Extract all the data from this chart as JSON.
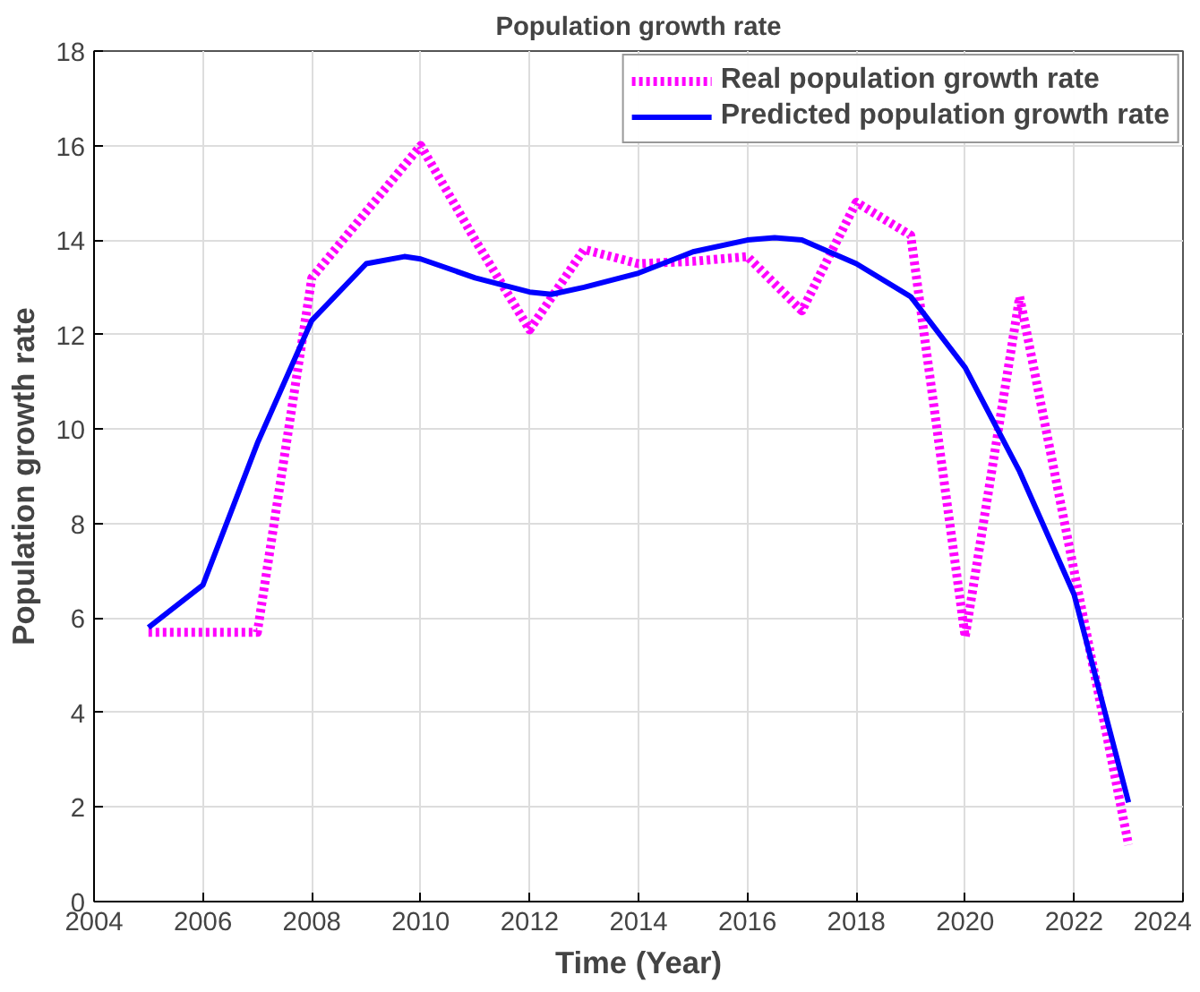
{
  "chart_data": {
    "type": "line",
    "title": "Population growth rate",
    "xlabel": "Time (Year)",
    "ylabel": "Population growth rate",
    "xlim": [
      2004,
      2024
    ],
    "xticks": [
      2004,
      2006,
      2008,
      2010,
      2012,
      2014,
      2016,
      2018,
      2020,
      2022,
      2024
    ],
    "ylim": [
      0,
      18
    ],
    "yticks": [
      0,
      2,
      4,
      6,
      8,
      10,
      12,
      14,
      16,
      18
    ],
    "grid": true,
    "legend": "top right",
    "series": [
      {
        "name": "Real population growth rate",
        "color": "#ff00ff",
        "line_style": "dotted",
        "x": [
          2005,
          2007,
          2008,
          2009,
          2010,
          2011,
          2012,
          2013,
          2014,
          2015,
          2016,
          2017,
          2018,
          2019,
          2020,
          2021,
          2023
        ],
        "values": [
          5.7,
          5.7,
          13.2,
          14.6,
          16,
          14,
          12.1,
          13.8,
          13.5,
          13.55,
          13.65,
          12.5,
          14.8,
          14.1,
          5.6,
          12.8,
          1.2
        ]
      },
      {
        "name": "Predicted population growth rate",
        "color": "#0000ff",
        "line_style": "solid",
        "x": [
          2005,
          2006,
          2007,
          2008,
          2009,
          2009.7,
          2010,
          2011,
          2012,
          2012.4,
          2013,
          2014,
          2015,
          2016,
          2016.5,
          2017,
          2018,
          2019,
          2020,
          2021,
          2022,
          2023
        ],
        "values": [
          5.8,
          6.7,
          9.7,
          12.3,
          13.5,
          13.65,
          13.6,
          13.2,
          12.9,
          12.85,
          13.0,
          13.3,
          13.75,
          14.0,
          14.05,
          14.0,
          13.5,
          12.8,
          11.3,
          9.1,
          6.5,
          2.1
        ]
      }
    ]
  }
}
